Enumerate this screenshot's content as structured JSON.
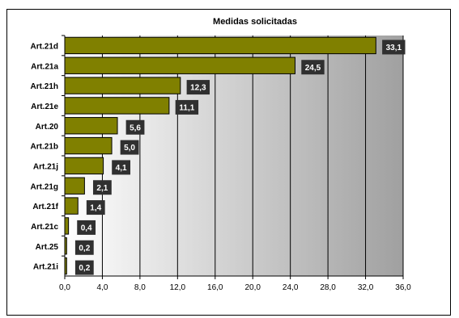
{
  "chart_data": {
    "type": "bar",
    "orientation": "horizontal",
    "title": "Medidas solicitadas",
    "categories": [
      "Art.21d",
      "Art.21a",
      "Art.21h",
      "Art.21e",
      "Art.20",
      "Art.21b",
      "Art.21j",
      "Art.21g",
      "Art.21f",
      "Art.21c",
      "Art.25",
      "Art.21i"
    ],
    "values": [
      33.1,
      24.5,
      12.3,
      11.1,
      5.6,
      5.0,
      4.1,
      2.1,
      1.4,
      0.4,
      0.2,
      0.2
    ],
    "data_labels": [
      "33,1",
      "24,5",
      "12,3",
      "11,1",
      "5,6",
      "5,0",
      "4,1",
      "2,1",
      "1,4",
      "0,4",
      "0,2",
      "0,2"
    ],
    "xlim": [
      0,
      36
    ],
    "x_ticks": [
      0,
      4,
      8,
      12,
      16,
      20,
      24,
      28,
      32,
      36
    ],
    "x_tick_labels": [
      "0,0",
      "4,0",
      "8,0",
      "12,0",
      "16,0",
      "20,0",
      "24,0",
      "28,0",
      "32,0",
      "36,0"
    ],
    "xlabel": "",
    "ylabel": "",
    "grid": "vertical",
    "legend": "none",
    "colors": {
      "bar": "#808000",
      "bar_edge": "#000000",
      "plot_gradient_start": "#ffffff",
      "plot_gradient_end": "#a0a0a0",
      "gridline": "#000000",
      "data_label_bg": "#303030",
      "data_label_text": "#ffffff"
    }
  }
}
